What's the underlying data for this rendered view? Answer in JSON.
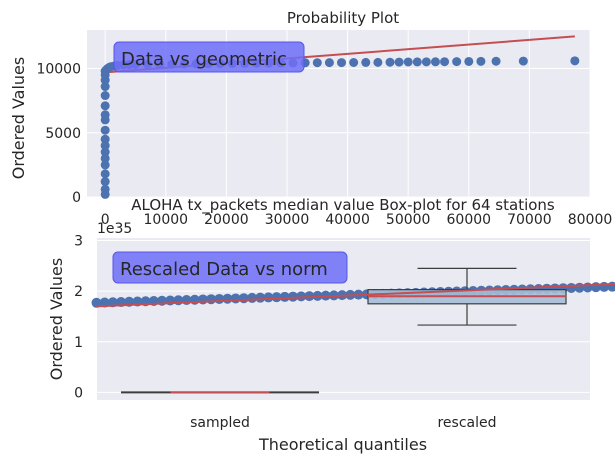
{
  "chart_data": [
    {
      "type": "scatter",
      "title": "Probability Plot",
      "xlabel": "",
      "ylabel": "Ordered Values",
      "xlim": [
        -3000,
        80000
      ],
      "ylim": [
        0,
        13000
      ],
      "x_ticks": [
        0,
        10000,
        20000,
        30000,
        40000,
        50000,
        60000,
        70000,
        80000
      ],
      "x_tick_labels": [
        "0",
        "10000",
        "20000",
        "30000",
        "40000",
        "50000",
        "60000",
        "70000",
        "80000"
      ],
      "y_ticks": [
        0,
        5000,
        10000
      ],
      "y_tick_labels": [
        "0",
        "5000",
        "10000"
      ],
      "grid": true,
      "annotation": "Data vs geometric",
      "fit_line": [
        [
          0,
          9700
        ],
        [
          77500,
          12500
        ]
      ],
      "vertical_cluster": [
        [
          0,
          200
        ],
        [
          0,
          600
        ],
        [
          0,
          1200
        ],
        [
          0,
          1800
        ],
        [
          0,
          2500
        ],
        [
          0,
          3000
        ],
        [
          0,
          3500
        ],
        [
          0,
          4000
        ],
        [
          0,
          4500
        ],
        [
          0,
          5200
        ],
        [
          0,
          6000
        ],
        [
          0,
          6400
        ],
        [
          0,
          7100
        ],
        [
          0,
          7900
        ],
        [
          0,
          8600
        ],
        [
          0,
          9100
        ],
        [
          0,
          9500
        ],
        [
          0,
          9800
        ]
      ],
      "series": [
        {
          "x": [
            200,
            400,
            700,
            1000,
            1500,
            2000,
            3000,
            4000,
            5000,
            7000,
            9000,
            11000,
            13000,
            15000,
            17000,
            19000,
            21000,
            23000,
            25000,
            27000,
            29000,
            31000,
            33000,
            35000,
            37000,
            39000,
            41000,
            43000,
            45000,
            47000,
            48500,
            50000,
            51500,
            53000,
            54500,
            56000,
            58000,
            60000,
            62000,
            64500,
            69000,
            77500
          ],
          "y": [
            9900,
            10000,
            10100,
            10150,
            10200,
            10250,
            10280,
            10300,
            10310,
            10320,
            10330,
            10340,
            10350,
            10360,
            10370,
            10380,
            10390,
            10400,
            10410,
            10420,
            10430,
            10440,
            10450,
            10455,
            10460,
            10465,
            10470,
            10475,
            10480,
            10490,
            10500,
            10510,
            10515,
            10520,
            10525,
            10530,
            10540,
            10550,
            10560,
            10570,
            10580,
            10600
          ]
        }
      ]
    },
    {
      "type": "box",
      "title": "ALOHA tx_packets median value Box-plot for 64 stations",
      "xlabel": "Theoretical quantiles",
      "ylabel": "Ordered Values",
      "offset_label": "1e35",
      "categories": [
        "sampled",
        "rescaled"
      ],
      "ylim": [
        -0.15,
        3.05
      ],
      "y_ticks": [
        0,
        1,
        2,
        3
      ],
      "y_tick_labels": [
        "0",
        "1",
        "2",
        "3"
      ],
      "grid": true,
      "annotation": "Rescaled Data vs norm",
      "boxes": [
        {
          "category": "sampled",
          "whisker_low": 0,
          "q1": 0,
          "median": 0,
          "q3": 0,
          "whisker_high": 0
        },
        {
          "category": "rescaled",
          "whisker_low": 1.33,
          "q1": 1.75,
          "median": 1.9,
          "q3": 2.03,
          "whisker_high": 2.45
        }
      ],
      "qq_points": {
        "x_start": -0.5,
        "x_end": 2.45,
        "y_start": 1.77,
        "y_end": 2.22
      },
      "fit_line": [
        [
          -0.5,
          1.7
        ],
        [
          2.45,
          2.32
        ]
      ]
    }
  ],
  "colors": {
    "background": "#eaeaf2",
    "grid": "#ffffff",
    "points": "#4c72b0",
    "fit_line": "#c44e52",
    "annotation_bg": "#6e6ef8",
    "box_fill": "#a6bcd6",
    "box_edge": "#3d3d3d"
  }
}
